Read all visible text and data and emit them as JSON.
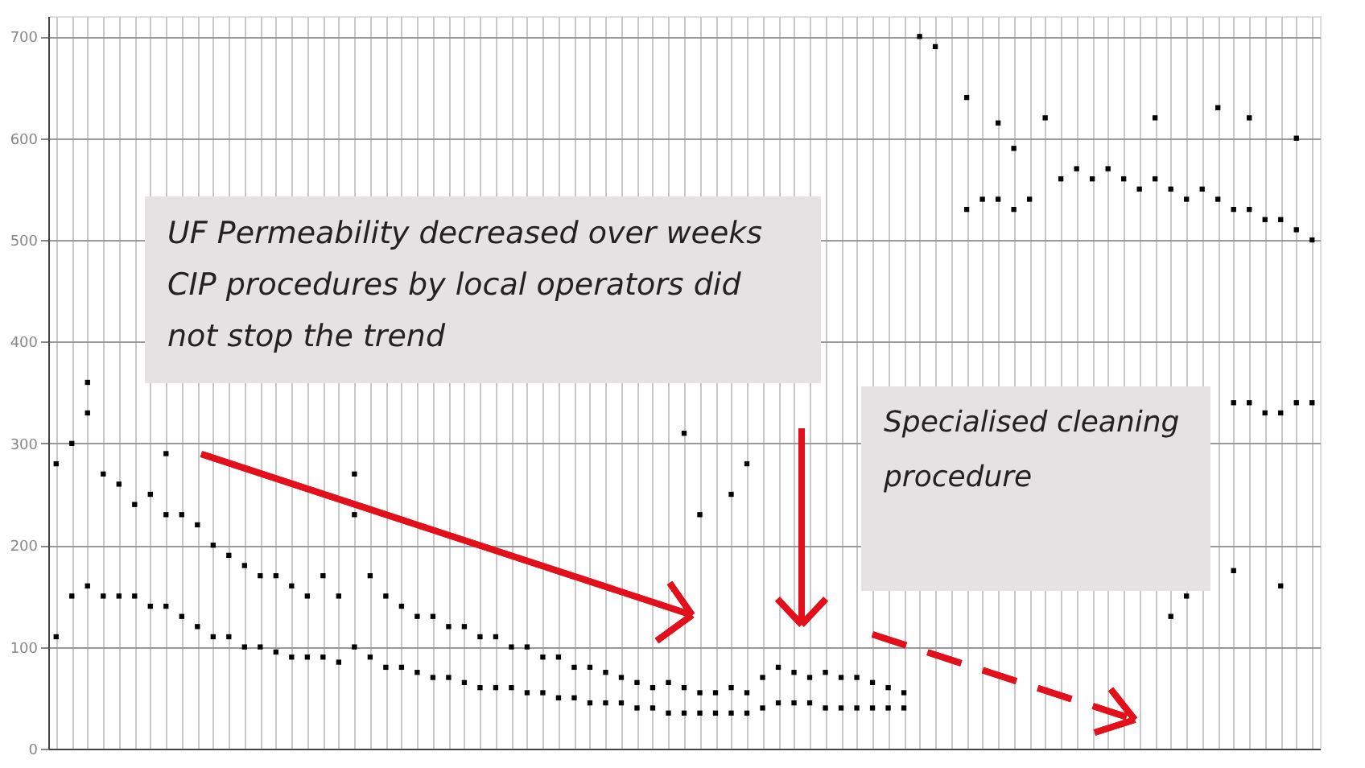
{
  "chart_data": {
    "type": "scatter",
    "categories": [
      null,
      null,
      null,
      null,
      null,
      null,
      null,
      null,
      null,
      null,
      null,
      null,
      null,
      null,
      null,
      null,
      null,
      null,
      null,
      null,
      null,
      null,
      null,
      null,
      null,
      null,
      null,
      null,
      null,
      null,
      null,
      null,
      null,
      null,
      null,
      null,
      null,
      null,
      null,
      null,
      null,
      null,
      null,
      null,
      null,
      null,
      null,
      null,
      null,
      null,
      null,
      null,
      null,
      null,
      null,
      null,
      null,
      null,
      null,
      null,
      null,
      null,
      null,
      null,
      null,
      null,
      null,
      null,
      null,
      null,
      null,
      null,
      null,
      null,
      null,
      null,
      null,
      null,
      null,
      null,
      null
    ],
    "series": [
      {
        "color": "#000000",
        "values": [
          280,
          300,
          330,
          270,
          260,
          240,
          250,
          230,
          230,
          220,
          200,
          190,
          180,
          170,
          170,
          160,
          150,
          170,
          150,
          230,
          170,
          150,
          140,
          130,
          130,
          120,
          120,
          110,
          110,
          100,
          100,
          90,
          90,
          80,
          80,
          75,
          70,
          65,
          60,
          65,
          60,
          55,
          55,
          60,
          55,
          70,
          80,
          75,
          70,
          75,
          70,
          70,
          65,
          60,
          55,
          null,
          null,
          null,
          530,
          540,
          540,
          530,
          540,
          null,
          560,
          570,
          560,
          570,
          560,
          550,
          560,
          550,
          540,
          550,
          540,
          530,
          530,
          520,
          520,
          510,
          500
        ]
      },
      {
        "color": "#000000",
        "values": [
          110,
          150,
          160,
          150,
          150,
          150,
          140,
          140,
          130,
          120,
          110,
          110,
          100,
          100,
          95,
          90,
          90,
          90,
          85,
          100,
          90,
          80,
          80,
          75,
          70,
          70,
          65,
          60,
          60,
          60,
          55,
          55,
          50,
          50,
          45,
          45,
          45,
          40,
          40,
          35,
          35,
          35,
          35,
          35,
          35,
          40,
          45,
          45,
          45,
          40,
          40,
          40,
          40,
          40,
          40,
          null,
          null,
          null,
          null,
          null,
          null,
          null,
          null,
          null,
          null,
          null,
          null,
          null,
          null,
          null,
          null,
          null,
          null,
          null,
          null,
          340,
          340,
          330,
          330,
          340,
          340
        ]
      },
      {
        "color": "#000000",
        "values": [
          null,
          null,
          360,
          null,
          null,
          null,
          null,
          290,
          null,
          null,
          null,
          null,
          null,
          null,
          null,
          null,
          null,
          null,
          null,
          270,
          null,
          null,
          null,
          null,
          null,
          null,
          null,
          null,
          null,
          null,
          null,
          null,
          null,
          null,
          null,
          null,
          null,
          null,
          null,
          null,
          310,
          230,
          null,
          250,
          280,
          null,
          null,
          null,
          null,
          null,
          null,
          null,
          null,
          null,
          null,
          700,
          690,
          null,
          640,
          null,
          615,
          590,
          null,
          620,
          null,
          null,
          null,
          null,
          null,
          null,
          620,
          130,
          150,
          null,
          630,
          175,
          620,
          null,
          160,
          600,
          null
        ]
      }
    ],
    "ylim": [
      0,
      720
    ],
    "yticks": [
      0,
      100,
      200,
      300,
      400,
      500,
      600,
      700
    ],
    "grid": true,
    "tick_labels": "y",
    "marker": "square",
    "legend": false,
    "annotations": [
      "UF Permeability decreased over weeks CIP procedures by local operators did not stop the trend",
      "Specialised cleaning procedure"
    ]
  }
}
